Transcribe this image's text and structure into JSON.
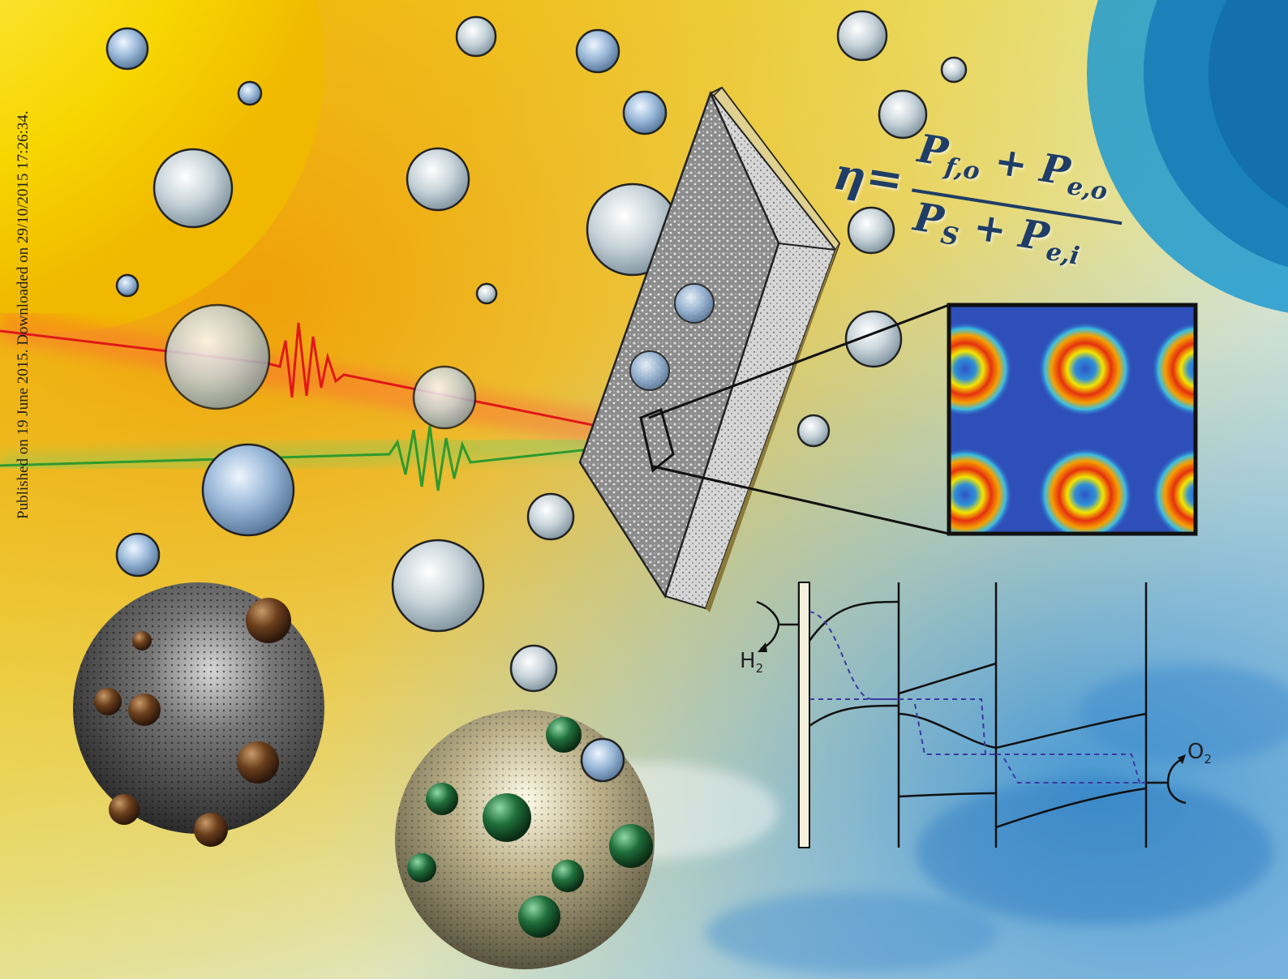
{
  "side_note": "Published on 19 June 2015. Downloaded on 29/10/2015 17:26:34.",
  "equation": {
    "lhs": "η",
    "equals": "=",
    "numerator": {
      "t1": "P",
      "s1": "f,o",
      "plus": " + ",
      "t2": "P",
      "s2": "e,o"
    },
    "denominator": {
      "t1": "P",
      "s1": "S",
      "plus": " + ",
      "t2": "P",
      "s2": "e,i"
    }
  },
  "gas_labels": {
    "h2": {
      "symbol": "H",
      "sub": "2"
    },
    "o2": {
      "symbol": "O",
      "sub": "2"
    }
  },
  "colors": {
    "sun": "#f6d000",
    "pulse_red": "#e01818",
    "pulse_green": "#2e9a2e",
    "map_blue": "#2e4fb8",
    "equation_text": "#1f3d66"
  }
}
